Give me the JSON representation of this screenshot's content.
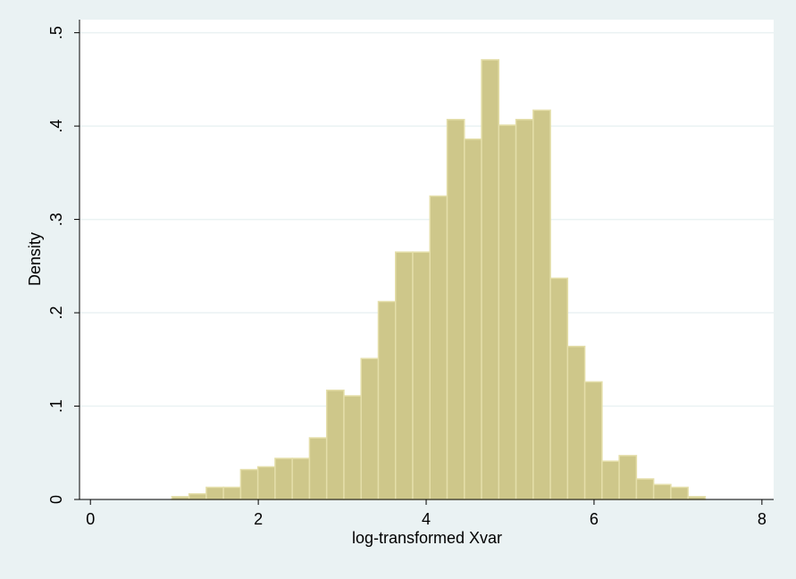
{
  "chart_data": {
    "type": "histogram",
    "x_label": "log-transformed Xvar",
    "y_label": "Density",
    "bins": [
      0.97,
      1.175,
      1.38,
      1.585,
      1.79,
      1.995,
      2.2,
      2.405,
      2.61,
      2.815,
      3.02,
      3.225,
      3.43,
      3.635,
      3.84,
      4.045,
      4.25,
      4.455,
      4.66,
      4.865,
      5.07,
      5.275,
      5.48,
      5.685,
      5.89,
      6.095,
      6.3,
      6.505,
      6.71,
      6.915,
      7.12,
      7.325
    ],
    "values": [
      0.003,
      0.006,
      0.013,
      0.013,
      0.032,
      0.035,
      0.044,
      0.044,
      0.066,
      0.117,
      0.111,
      0.151,
      0.212,
      0.265,
      0.265,
      0.325,
      0.407,
      0.386,
      0.471,
      0.401,
      0.407,
      0.417,
      0.237,
      0.164,
      0.126,
      0.041,
      0.047,
      0.022,
      0.016,
      0.013,
      0.003
    ],
    "color": "#cec78a",
    "xlim": [
      -0.13,
      8.14
    ],
    "ylim": [
      0,
      0.514
    ],
    "xticks": [
      0,
      2,
      4,
      6,
      8
    ],
    "yticks": [
      0,
      {
        "value": 0.1,
        "label": ".1"
      },
      {
        "value": 0.2,
        "label": ".2"
      },
      {
        "value": 0.3,
        "label": ".3"
      },
      {
        "value": 0.4,
        "label": ".4"
      },
      {
        "value": 0.5,
        "label": ".5"
      }
    ],
    "grid": true
  }
}
